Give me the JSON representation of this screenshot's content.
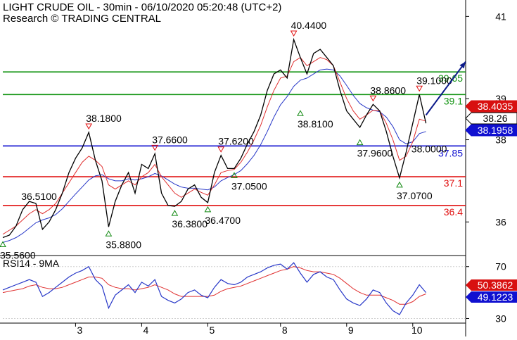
{
  "header": {
    "title": "LIGHT CRUDE OIL - 30min - 06/10/2020 05:20:48 (UTC+2)",
    "subtitle": "Research © TRADING CENTRAL"
  },
  "rsi_panel": {
    "title": "RSI14 - 9MA"
  },
  "colors": {
    "price": "#000000",
    "ma_fast": "#e03030",
    "ma_slow": "#2838c8",
    "resistance": "#139413",
    "pivot": "#1010d0",
    "support": "#e01010",
    "arrow": "#0b1a8a",
    "axis": "#000000",
    "grid": "#cfcfcf"
  },
  "chart_data": [
    {
      "type": "line",
      "title": "LIGHT CRUDE OIL - 30min",
      "y_ticks": [
        "41",
        "39",
        "38",
        "36"
      ],
      "x_ticks": [
        "3",
        "4",
        "5",
        "8",
        "9",
        "10"
      ],
      "ylim": [
        35.2,
        41.4
      ],
      "series": [
        {
          "name": "",
          "x": [
            0,
            1,
            2,
            3,
            4,
            5,
            6,
            7,
            8,
            9,
            10,
            11,
            12,
            13,
            14,
            15,
            16,
            17,
            18,
            19,
            20,
            21,
            22,
            23,
            24,
            25,
            26,
            27,
            28,
            29,
            30,
            31,
            32,
            33,
            34,
            35,
            36,
            37,
            38,
            39,
            40,
            41,
            42,
            43,
            44,
            45,
            46,
            47,
            48,
            49,
            50,
            51,
            52,
            53,
            54,
            55,
            56,
            57,
            58,
            59,
            60,
            61,
            62,
            63,
            64
          ],
          "values": [
            35.62,
            35.68,
            35.9,
            36.3,
            36.5,
            36.45,
            35.82,
            36.0,
            36.3,
            36.7,
            37.2,
            37.55,
            37.8,
            38.18,
            37.5,
            37.0,
            35.88,
            36.5,
            36.9,
            37.2,
            36.7,
            37.4,
            37.3,
            37.66,
            36.7,
            36.4,
            36.38,
            36.5,
            36.8,
            36.9,
            36.6,
            36.47,
            37.2,
            37.62,
            37.3,
            37.3,
            37.55,
            37.9,
            38.2,
            38.6,
            39.2,
            39.6,
            39.7,
            39.5,
            40.44,
            40.0,
            39.6,
            40.1,
            40.2,
            40.0,
            39.8,
            39.2,
            38.7,
            38.5,
            38.3,
            38.6,
            38.86,
            38.7,
            38.2,
            37.6,
            37.07,
            37.7,
            38.4,
            39.1,
            38.4
          ]
        },
        {
          "name": "",
          "values": [
            35.7,
            35.8,
            35.9,
            36.05,
            36.2,
            36.3,
            36.2,
            36.3,
            36.45,
            36.7,
            36.95,
            37.2,
            37.45,
            37.6,
            37.5,
            37.35,
            36.9,
            36.8,
            36.9,
            37.0,
            36.9,
            37.1,
            37.2,
            37.4,
            37.1,
            36.9,
            36.7,
            36.6,
            36.7,
            36.8,
            36.72,
            36.65,
            36.9,
            37.2,
            37.25,
            37.28,
            37.45,
            37.7,
            38.0,
            38.35,
            38.8,
            39.2,
            39.5,
            39.55,
            39.9,
            40.0,
            39.8,
            39.9,
            40.0,
            39.95,
            39.8,
            39.4,
            39.0,
            38.7,
            38.5,
            38.6,
            38.72,
            38.7,
            38.4,
            38.0,
            37.5,
            37.6,
            37.95,
            38.5,
            38.45
          ]
        },
        {
          "name": "",
          "values": [
            35.5,
            35.55,
            35.62,
            35.72,
            35.85,
            35.98,
            36.05,
            36.1,
            36.18,
            36.32,
            36.5,
            36.68,
            36.85,
            37.02,
            37.12,
            37.15,
            37.05,
            37.0,
            37.0,
            37.05,
            37.02,
            37.05,
            37.1,
            37.18,
            37.12,
            37.02,
            36.92,
            36.85,
            36.82,
            36.82,
            36.8,
            36.78,
            36.85,
            37.0,
            37.08,
            37.15,
            37.25,
            37.42,
            37.62,
            37.88,
            38.2,
            38.55,
            38.85,
            39.05,
            39.3,
            39.45,
            39.5,
            39.6,
            39.7,
            39.72,
            39.7,
            39.55,
            39.32,
            39.08,
            38.88,
            38.78,
            38.72,
            38.68,
            38.55,
            38.32,
            38.0,
            37.9,
            37.95,
            38.15,
            38.2
          ]
        }
      ],
      "levels": [
        {
          "value": "39.65",
          "kind": "resistance"
        },
        {
          "value": "39.1",
          "kind": "resistance"
        },
        {
          "value": "37.85",
          "kind": "pivot"
        },
        {
          "value": "37.1",
          "kind": "support"
        },
        {
          "value": "36.4",
          "kind": "support"
        }
      ],
      "last_price_badges": [
        {
          "value": "38.4035",
          "kind": "fast"
        },
        {
          "value": "38.26",
          "kind": "last"
        },
        {
          "value": "38.1958",
          "kind": "slow"
        }
      ],
      "annotations": [
        {
          "text": "36.5100",
          "x": 3,
          "y": 36.5,
          "marker": "none"
        },
        {
          "text": "35.5600",
          "x": 0,
          "y": 35.62,
          "marker": "up"
        },
        {
          "text": "38.1800",
          "x": 13,
          "y": 38.18,
          "marker": "down"
        },
        {
          "text": "35.8800",
          "x": 16,
          "y": 35.88,
          "marker": "up"
        },
        {
          "text": "37.6600",
          "x": 23,
          "y": 37.66,
          "marker": "down"
        },
        {
          "text": "36.3800",
          "x": 26,
          "y": 36.38,
          "marker": "up"
        },
        {
          "text": "36.4700",
          "x": 31,
          "y": 36.47,
          "marker": "up"
        },
        {
          "text": "37.6200",
          "x": 33,
          "y": 37.62,
          "marker": "down"
        },
        {
          "text": "37.0500",
          "x": 35,
          "y": 37.3,
          "marker": "up"
        },
        {
          "text": "40.4400",
          "x": 44,
          "y": 40.44,
          "marker": "down"
        },
        {
          "text": "38.8100",
          "x": 45,
          "y": 38.81,
          "marker": "up"
        },
        {
          "text": "38.8600",
          "x": 56,
          "y": 38.86,
          "marker": "down"
        },
        {
          "text": "37.9600",
          "x": 54,
          "y": 38.1,
          "marker": "up"
        },
        {
          "text": "37.0700",
          "x": 60,
          "y": 37.07,
          "marker": "up"
        },
        {
          "text": "39.1000",
          "x": 63,
          "y": 39.1,
          "marker": "down"
        },
        {
          "text": "38.0000",
          "x": 62,
          "y": 38.0,
          "marker": "none"
        }
      ],
      "forecast_arrow": {
        "from": [
          64,
          38.6
        ],
        "to": [
          70,
          39.9
        ]
      }
    },
    {
      "type": "line",
      "title": "RSI14 - 9MA",
      "y_ticks": [
        "70",
        "30"
      ],
      "ylim": [
        27,
        78
      ],
      "series": [
        {
          "name": "",
          "values": [
            52,
            54,
            56,
            58,
            60,
            58,
            47,
            50,
            54,
            58,
            62,
            65,
            67,
            70,
            60,
            55,
            38,
            48,
            52,
            56,
            50,
            58,
            55,
            60,
            47,
            44,
            42,
            45,
            50,
            52,
            48,
            46,
            54,
            60,
            57,
            56,
            58,
            62,
            64,
            66,
            69,
            71,
            72,
            68,
            73,
            65,
            58,
            64,
            66,
            62,
            60,
            52,
            45,
            42,
            40,
            45,
            52,
            50,
            42,
            36,
            33,
            42,
            48,
            56,
            50
          ]
        },
        {
          "name": "",
          "values": [
            50,
            51,
            52,
            53,
            55,
            56,
            54,
            53,
            53,
            54,
            56,
            58,
            60,
            62,
            62,
            61,
            56,
            54,
            53,
            53,
            52,
            53,
            54,
            56,
            54,
            52,
            49,
            47,
            47,
            47,
            47,
            47,
            48,
            51,
            53,
            54,
            55,
            57,
            59,
            61,
            63,
            65,
            67,
            68,
            70,
            69,
            67,
            66,
            66,
            65,
            64,
            61,
            57,
            53,
            50,
            48,
            48,
            48,
            46,
            44,
            41,
            41,
            43,
            47,
            49
          ]
        }
      ],
      "current_values": [
        {
          "value": "50.3862",
          "kind": "ma"
        },
        {
          "value": "49.1223",
          "kind": "rsi"
        }
      ]
    }
  ]
}
